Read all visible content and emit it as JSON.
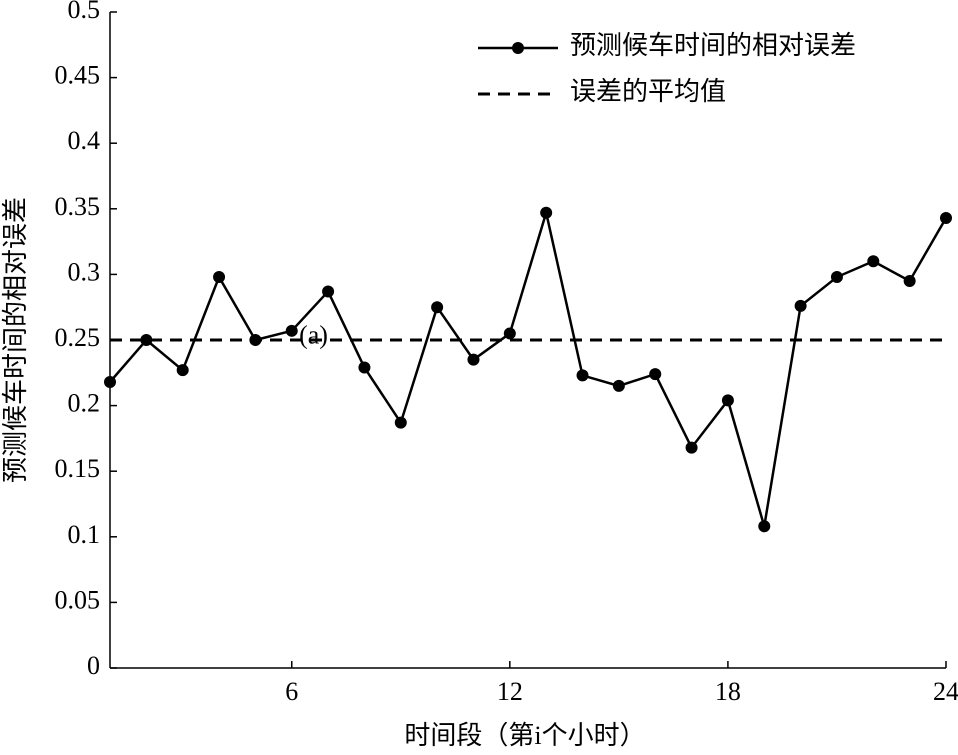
{
  "chart_data": {
    "type": "line",
    "x_label": "时间段（第i个小时）",
    "y_label": "预测候车时间的相对误差",
    "x": [
      1,
      2,
      3,
      4,
      5,
      6,
      7,
      8,
      9,
      10,
      11,
      12,
      13,
      14,
      15,
      16,
      17,
      18,
      19,
      20,
      21,
      22,
      23,
      24
    ],
    "series": [
      {
        "name": "预测候车时间的相对误差",
        "color": "#000000",
        "values": [
          0.218,
          0.25,
          0.227,
          0.298,
          0.25,
          0.257,
          0.287,
          0.229,
          0.187,
          0.275,
          0.235,
          0.255,
          0.347,
          0.223,
          0.215,
          0.224,
          0.168,
          0.204,
          0.108,
          0.276,
          0.298,
          0.31,
          0.295,
          0.343
        ]
      }
    ],
    "mean_line": {
      "name": "误差的平均值",
      "value": 0.25,
      "color": "#000000"
    },
    "annotation": {
      "text": "(a)",
      "x": 6.6,
      "y": 0.252
    },
    "xlim": [
      1,
      24
    ],
    "xticks": [
      6,
      12,
      18,
      24
    ],
    "ylim": [
      0,
      0.5
    ],
    "yticks": [
      0,
      0.05,
      0.1,
      0.15,
      0.2,
      0.25,
      0.3,
      0.35,
      0.4,
      0.45,
      0.5
    ],
    "legend": "upper right"
  }
}
